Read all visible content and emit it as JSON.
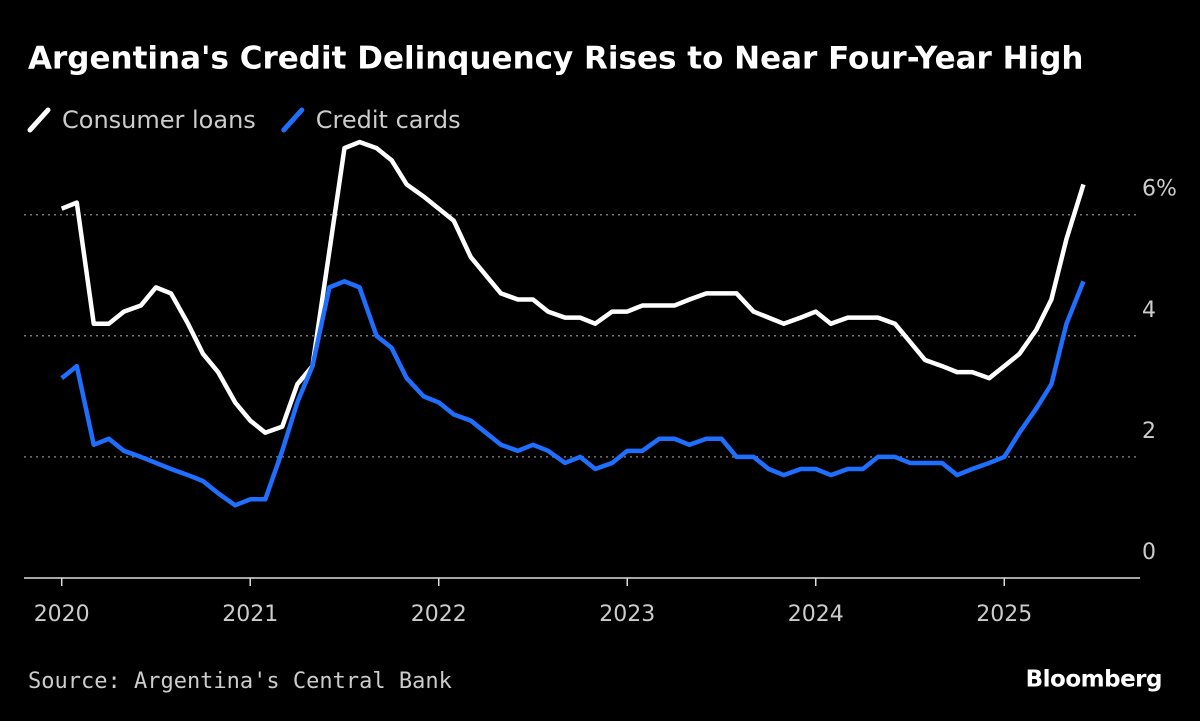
{
  "chart_data": {
    "type": "line",
    "title": "Argentina's Credit Delinquency Rises to Near Four-Year High",
    "source": "Source: Argentina's Central Bank",
    "credit": "Bloomberg",
    "x": [
      2020,
      2020.08,
      2020.17,
      2020.25,
      2020.33,
      2020.42,
      2020.5,
      2020.58,
      2020.67,
      2020.75,
      2020.83,
      2020.92,
      2021,
      2021.08,
      2021.17,
      2021.25,
      2021.33,
      2021.42,
      2021.5,
      2021.58,
      2021.67,
      2021.75,
      2021.83,
      2021.92,
      2022,
      2022.08,
      2022.17,
      2022.25,
      2022.33,
      2022.42,
      2022.5,
      2022.58,
      2022.67,
      2022.75,
      2022.83,
      2022.92,
      2023,
      2023.08,
      2023.17,
      2023.25,
      2023.33,
      2023.42,
      2023.5,
      2023.58,
      2023.67,
      2023.75,
      2023.83,
      2023.92,
      2024,
      2024.08,
      2024.17,
      2024.25,
      2024.33,
      2024.42,
      2024.5,
      2024.58,
      2024.67,
      2024.75,
      2024.83,
      2024.92,
      2025,
      2025.08,
      2025.17,
      2025.25,
      2025.33,
      2025.42
    ],
    "series": [
      {
        "name": "Consumer loans",
        "color": "#ffffff",
        "values": [
          6.1,
          6.2,
          4.2,
          4.2,
          4.4,
          4.5,
          4.8,
          4.7,
          4.2,
          3.7,
          3.4,
          2.9,
          2.6,
          2.4,
          2.5,
          3.2,
          3.5,
          5.4,
          7.1,
          7.2,
          7.1,
          6.9,
          6.5,
          6.3,
          6.1,
          5.9,
          5.3,
          5.0,
          4.7,
          4.6,
          4.6,
          4.4,
          4.3,
          4.3,
          4.2,
          4.4,
          4.4,
          4.5,
          4.5,
          4.5,
          4.6,
          4.7,
          4.7,
          4.7,
          4.4,
          4.3,
          4.2,
          4.3,
          4.4,
          4.2,
          4.3,
          4.3,
          4.3,
          4.2,
          3.9,
          3.6,
          3.5,
          3.4,
          3.4,
          3.3,
          3.5,
          3.7,
          4.1,
          4.6,
          5.6,
          6.5
        ]
      },
      {
        "name": "Credit cards",
        "color": "#1f6fff",
        "values": [
          3.3,
          3.5,
          2.2,
          2.3,
          2.1,
          2.0,
          1.9,
          1.8,
          1.7,
          1.6,
          1.4,
          1.2,
          1.3,
          1.3,
          2.1,
          2.9,
          3.5,
          4.8,
          4.9,
          4.8,
          4.0,
          3.8,
          3.3,
          3.0,
          2.9,
          2.7,
          2.6,
          2.4,
          2.2,
          2.1,
          2.2,
          2.1,
          1.9,
          2.0,
          1.8,
          1.9,
          2.1,
          2.1,
          2.3,
          2.3,
          2.2,
          2.3,
          2.3,
          2.0,
          2.0,
          1.8,
          1.7,
          1.8,
          1.8,
          1.7,
          1.8,
          1.8,
          2.0,
          2.0,
          1.9,
          1.9,
          1.9,
          1.7,
          1.8,
          1.9,
          2.0,
          2.4,
          2.8,
          3.2,
          4.2,
          4.9
        ]
      }
    ],
    "xlim": [
      2019.8,
      2025.72
    ],
    "xticks": [
      2020,
      2021,
      2022,
      2023,
      2024,
      2025
    ],
    "ylim": [
      0,
      7.3
    ],
    "yticks": [
      0,
      2,
      4,
      {
        "value": 6,
        "label": "6%"
      }
    ],
    "grid": true,
    "legend": "top-left"
  }
}
